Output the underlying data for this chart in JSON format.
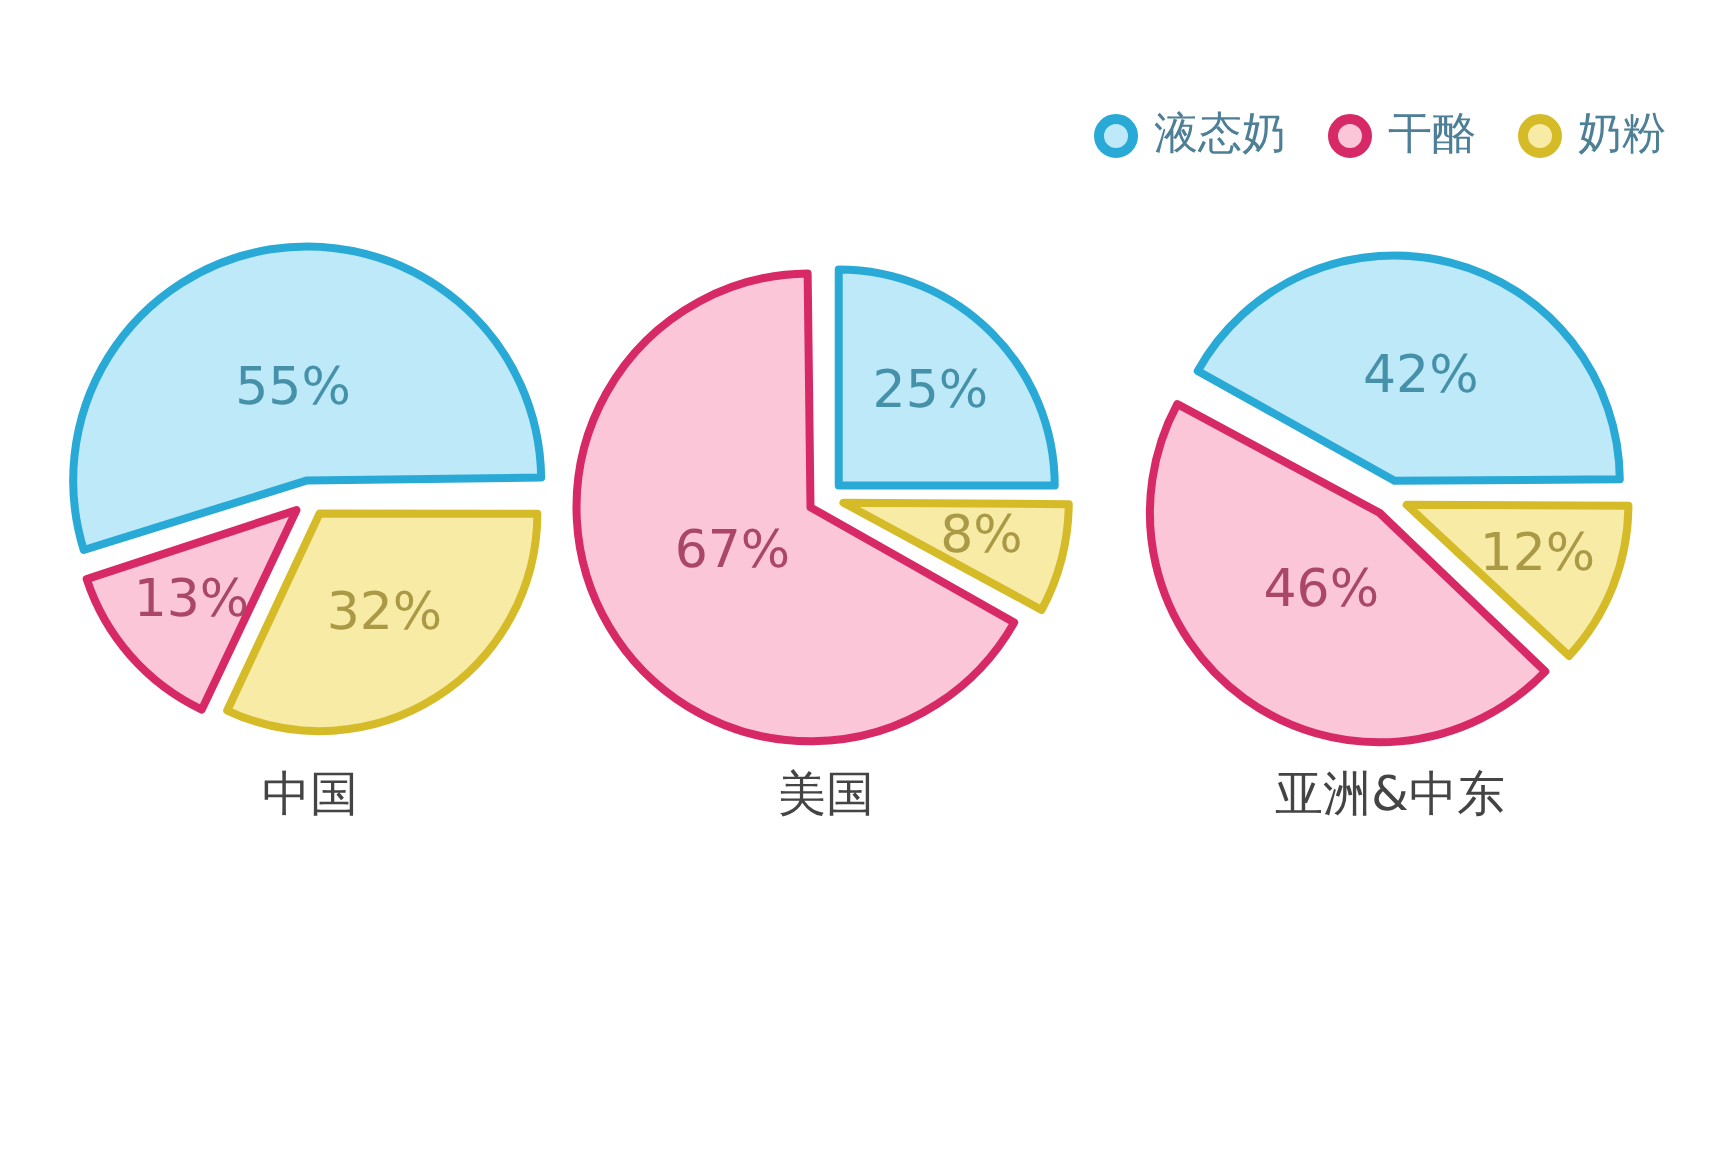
{
  "chart_data": [
    {
      "type": "pie",
      "title": "中国",
      "categories": [
        "液态奶",
        "干酪",
        "奶粉"
      ],
      "values": [
        55,
        13,
        32
      ],
      "colors": [
        "#bde9f8",
        "#fac6d8",
        "#f8eba6"
      ],
      "value_labels": [
        "55%",
        "13%",
        "32%"
      ],
      "legend": "top right"
    },
    {
      "type": "pie",
      "title": "美国",
      "categories": [
        null,
        null,
        null
      ],
      "values": [
        25,
        67,
        8
      ],
      "colors": [
        "#bde9f8",
        "#fac6d8",
        "#f8eba6"
      ],
      "value_labels": [
        "25%",
        "67%",
        "8%"
      ]
    },
    {
      "type": "pie",
      "title": "亚洲&中东",
      "categories": [
        null,
        null,
        null
      ],
      "values": [
        42,
        46,
        12
      ],
      "colors": [
        "#bde9f8",
        "#fac6d8",
        "#f8eba6"
      ],
      "value_labels": [
        "42%",
        "46%",
        "12%"
      ]
    }
  ]
}
